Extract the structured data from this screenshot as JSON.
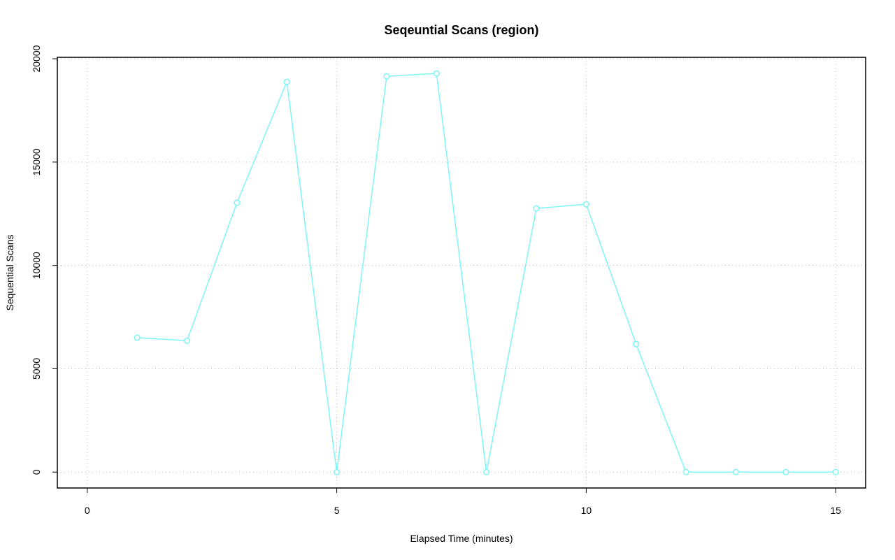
{
  "chart_data": {
    "type": "line",
    "title": "Seqeuntial Scans (region)",
    "x_label": "Elapsed Time (minutes)",
    "y_label": "Sequential Scans",
    "x": [
      1,
      2,
      3,
      4,
      5,
      6,
      7,
      8,
      9,
      10,
      11,
      12,
      13,
      14,
      15
    ],
    "values": [
      6500,
      6360,
      13030,
      18880,
      0,
      19150,
      19290,
      0,
      12760,
      12960,
      6190,
      0,
      0,
      0,
      0
    ],
    "color": "#7ff5f7",
    "xlim": [
      -0.6,
      15.6
    ],
    "xticks": [
      0,
      5,
      10,
      15
    ],
    "ylim": [
      -770,
      20070
    ],
    "yticks": [
      0,
      5000,
      10000,
      15000,
      20000
    ],
    "grid": true
  }
}
